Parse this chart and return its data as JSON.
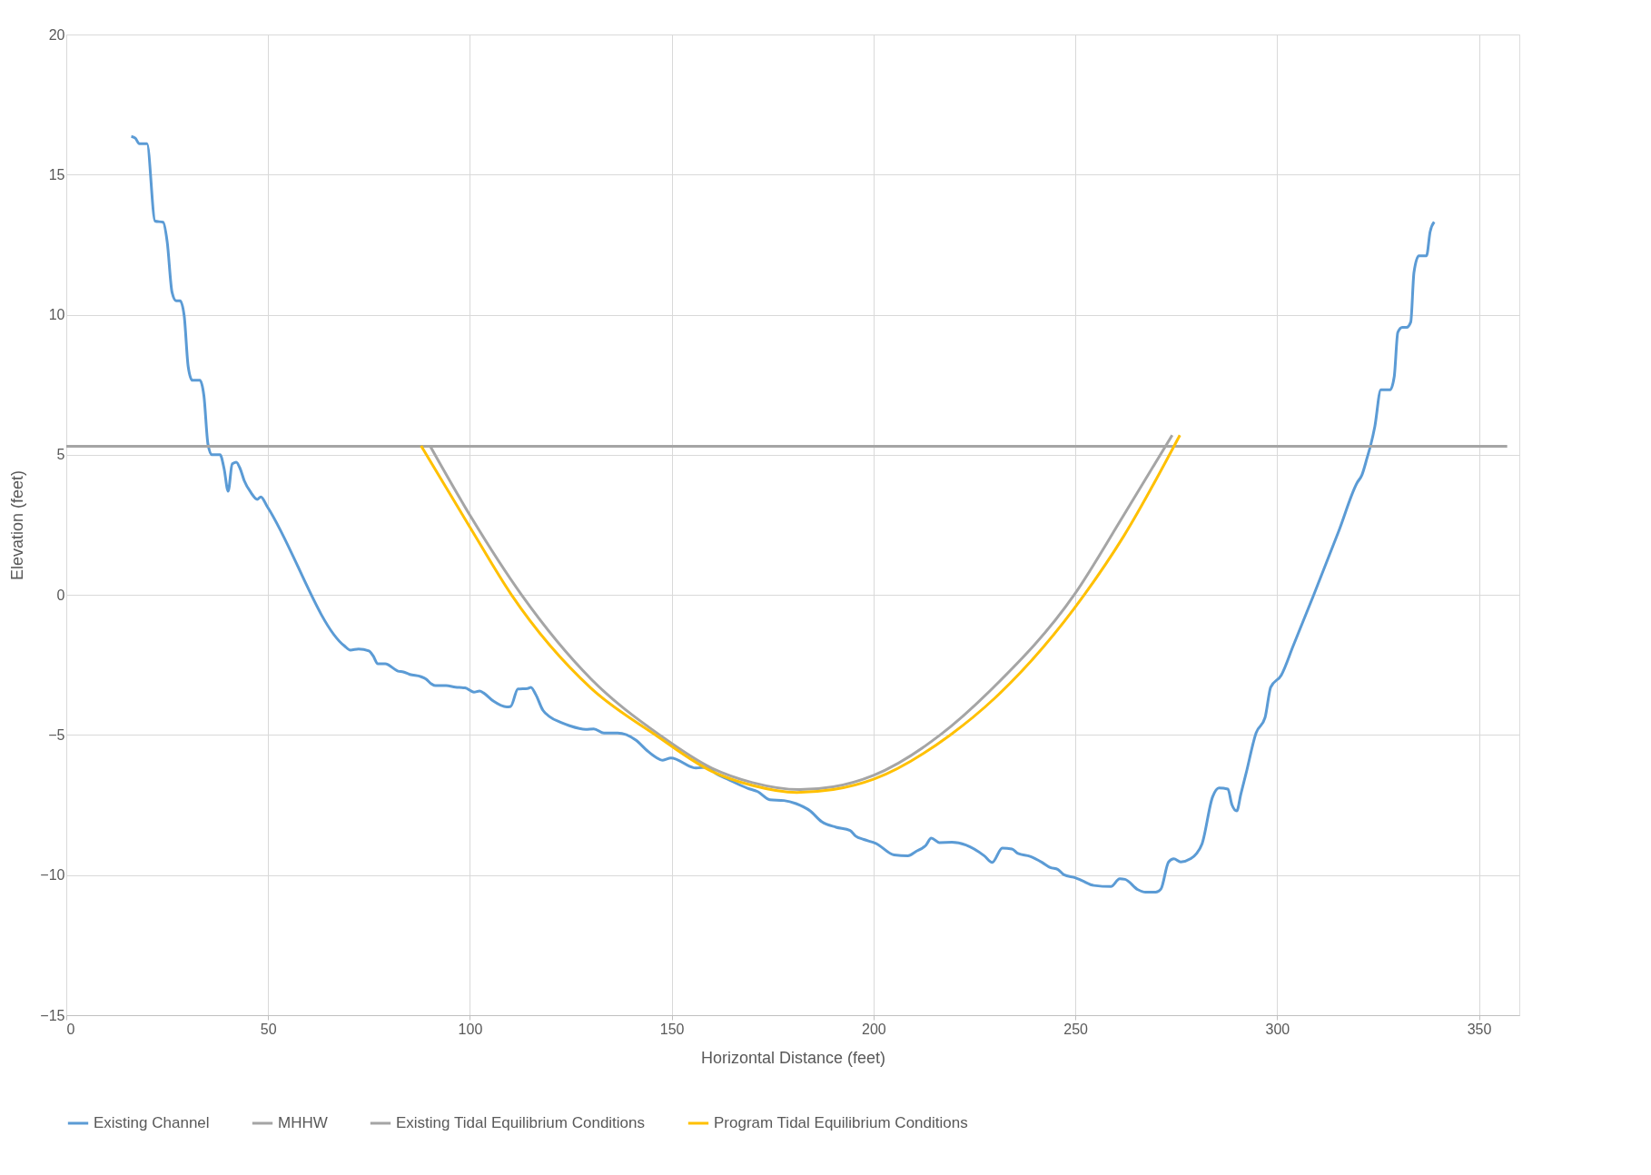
{
  "chart_data": {
    "type": "line",
    "xlabel": "Horizontal Distance (feet)",
    "ylabel": "Elevation (feet)",
    "xlim": [
      0,
      360
    ],
    "xticks": [
      0,
      50,
      100,
      150,
      200,
      250,
      300,
      350
    ],
    "ylim": [
      -15,
      20
    ],
    "yticks": [
      -15,
      -10,
      -5,
      0,
      5,
      10,
      15,
      20
    ],
    "grid": true,
    "legend": "bottom",
    "marker": "none",
    "line_style": "solid",
    "series": [
      {
        "name": "Existing Channel",
        "color": "#5b9bd5",
        "x": [
          16.1,
          17.1,
          18.1,
          20.0,
          22.0,
          24.0,
          25.0,
          26.2,
          27.2,
          28.2,
          29.2,
          30.2,
          31.2,
          33.1,
          34.1,
          35.1,
          36.1,
          38.1,
          39.1,
          40.1,
          41.1,
          42.1,
          43.1,
          44.1,
          45.8,
          47.3,
          48.2,
          49.8,
          68.9,
          70.4,
          72.4,
          75.0,
          76.0,
          77.2,
          79.0,
          82.2,
          83.5,
          85.1,
          87.9,
          89.1,
          90.5,
          91.5,
          94.1,
          96.4,
          98.8,
          101.0,
          102.4,
          103.4,
          105.8,
          109.1,
          110.1,
          111.9,
          114.3,
          115.1,
          116.3,
          118.1,
          119.7,
          122.7,
          124.7,
          128.7,
          130.7,
          133.2,
          136.6,
          141.1,
          144.0,
          146.0,
          147.8,
          149.8,
          156.0,
          158.9,
          160.9,
          163.9,
          168.8,
          171.3,
          174.3,
          177.8,
          180.8,
          184.3,
          187.2,
          190.7,
          194.2,
          195.6,
          197.6,
          200.6,
          205.1,
          208.5,
          210.5,
          213.0,
          214.3,
          216.3,
          219.4,
          222.9,
          227.4,
          229.4,
          231.9,
          234.3,
          235.8,
          238.8,
          241.8,
          243.8,
          245.7,
          247.2,
          250.1,
          251.7,
          254.6,
          258.8,
          261.0,
          262.3,
          265.5,
          267.4,
          269.9,
          271.2,
          273.1,
          274.4,
          276.1,
          278.5,
          280.1,
          281.4,
          284.0,
          285.6,
          287.8,
          288.8,
          290.0,
          291.0,
          292.3,
          294.8,
          297.0,
          298.4,
          301.0,
          304.0,
          308.9,
          315.3,
          319.8,
          321.0,
          322.3,
          323.2,
          324.2,
          325.7,
          328.0,
          329.0,
          329.9,
          331.0,
          332.1,
          333.1,
          333.9,
          335.1,
          337.0,
          337.9,
          338.9
        ],
        "values": [
          16.36,
          16.3,
          16.1,
          16.1,
          13.34,
          13.3,
          12.6,
          10.8,
          10.5,
          10.5,
          9.97,
          8.15,
          7.66,
          7.66,
          7.1,
          5.38,
          5.0,
          5.0,
          4.5,
          3.7,
          4.67,
          4.74,
          4.5,
          4.07,
          3.64,
          3.41,
          3.5,
          3.15,
          -1.82,
          -1.97,
          -1.93,
          -2.0,
          -2.17,
          -2.46,
          -2.46,
          -2.72,
          -2.75,
          -2.84,
          -2.92,
          -3.0,
          -3.18,
          -3.24,
          -3.24,
          -3.29,
          -3.32,
          -3.47,
          -3.43,
          -3.5,
          -3.79,
          -4.0,
          -3.98,
          -3.36,
          -3.34,
          -3.3,
          -3.55,
          -4.12,
          -4.34,
          -4.56,
          -4.67,
          -4.8,
          -4.78,
          -4.93,
          -4.93,
          -5.18,
          -5.57,
          -5.79,
          -5.9,
          -5.82,
          -6.18,
          -6.15,
          -6.37,
          -6.58,
          -6.9,
          -7.02,
          -7.31,
          -7.34,
          -7.45,
          -7.71,
          -8.1,
          -8.29,
          -8.41,
          -8.61,
          -8.73,
          -8.87,
          -9.28,
          -9.31,
          -9.16,
          -8.93,
          -8.68,
          -8.84,
          -8.83,
          -8.93,
          -9.31,
          -9.55,
          -9.04,
          -9.07,
          -9.23,
          -9.33,
          -9.55,
          -9.73,
          -9.8,
          -9.99,
          -10.1,
          -10.2,
          -10.37,
          -10.41,
          -10.13,
          -10.15,
          -10.52,
          -10.61,
          -10.61,
          -10.5,
          -9.53,
          -9.42,
          -9.53,
          -9.42,
          -9.22,
          -8.88,
          -7.21,
          -6.89,
          -6.93,
          -7.49,
          -7.71,
          -7.11,
          -6.37,
          -4.92,
          -4.38,
          -3.3,
          -2.87,
          -1.81,
          -0.06,
          2.29,
          4.0,
          4.28,
          4.9,
          5.36,
          6.01,
          7.32,
          7.32,
          7.78,
          9.37,
          9.55,
          9.55,
          9.74,
          11.51,
          12.1,
          12.1,
          12.96,
          13.31
        ]
      },
      {
        "name": "MHHW",
        "color": "#a5a5a5",
        "x": [
          0,
          357
        ],
        "values": [
          5.3,
          5.3
        ]
      },
      {
        "name": "Existing Tidal Equilibrium Conditions",
        "color": "#a5a5a5",
        "x": [
          90.1,
          100.4,
          112.8,
          130,
          147,
          160,
          170,
          181.7,
          190,
          200,
          216.5,
          230,
          249.7,
          262,
          274
        ],
        "values": [
          5.32,
          2.75,
          0,
          -3.0,
          -5,
          -6.19,
          -6.7,
          -6.95,
          -6.85,
          -6.44,
          -5,
          -3.26,
          0,
          2.85,
          5.7
        ]
      },
      {
        "name": "Program Tidal Equilibrium Conditions",
        "color": "#ffc000",
        "x": [
          87.9,
          100.4,
          110.3,
          130,
          146,
          160,
          170,
          181,
          190,
          200,
          219,
          230,
          252.2,
          262,
          275.9
        ],
        "values": [
          5.32,
          2.32,
          0,
          -3.33,
          -5,
          -6.3,
          -6.8,
          -7.05,
          -6.95,
          -6.58,
          -5,
          -3.69,
          0,
          2.1,
          5.7
        ]
      }
    ]
  }
}
